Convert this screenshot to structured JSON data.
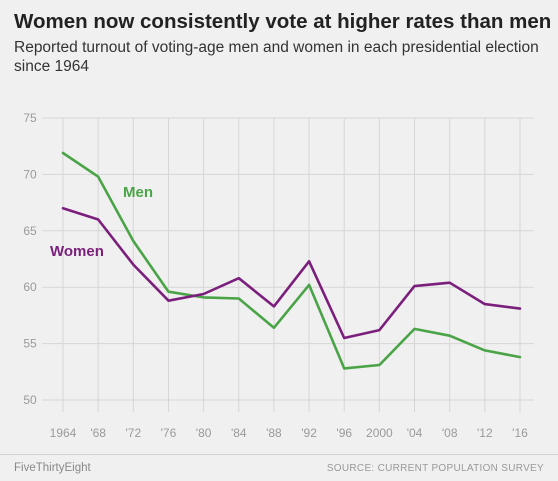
{
  "title": "Women now consistently vote at higher rates than men",
  "subtitle": "Reported turnout of voting-age men and women in each presidential election since 1964",
  "footer": {
    "brand": "FiveThirtyEight",
    "source": "SOURCE: CURRENT POPULATION SURVEY"
  },
  "colors": {
    "men": "#4aa447",
    "women": "#7b1f7c",
    "grid": "#d6d6d6",
    "background": "#f0f0f0"
  },
  "chart_data": {
    "type": "line",
    "title": "Women now consistently vote at higher rates than men",
    "subtitle": "Reported turnout of voting-age men and women in each presidential election since 1964",
    "xlabel": "",
    "ylabel": "",
    "categories": [
      "1964",
      "'68",
      "'72",
      "'76",
      "'80",
      "'84",
      "'88",
      "'92",
      "'96",
      "2000",
      "'04",
      "'08",
      "'12",
      "'16"
    ],
    "yticks": [
      50,
      55,
      60,
      65,
      70,
      75
    ],
    "ylim": [
      50,
      75
    ],
    "grid": true,
    "series": [
      {
        "name": "Men",
        "color": "#4aa447",
        "values": [
          71.9,
          69.8,
          64.1,
          59.6,
          59.1,
          59.0,
          56.4,
          60.2,
          52.8,
          53.1,
          56.3,
          55.7,
          54.4,
          53.8
        ]
      },
      {
        "name": "Women",
        "color": "#7b1f7c",
        "values": [
          67.0,
          66.0,
          62.0,
          58.8,
          59.4,
          60.8,
          58.3,
          62.3,
          55.5,
          56.2,
          60.1,
          60.4,
          58.5,
          58.1
        ]
      }
    ]
  }
}
